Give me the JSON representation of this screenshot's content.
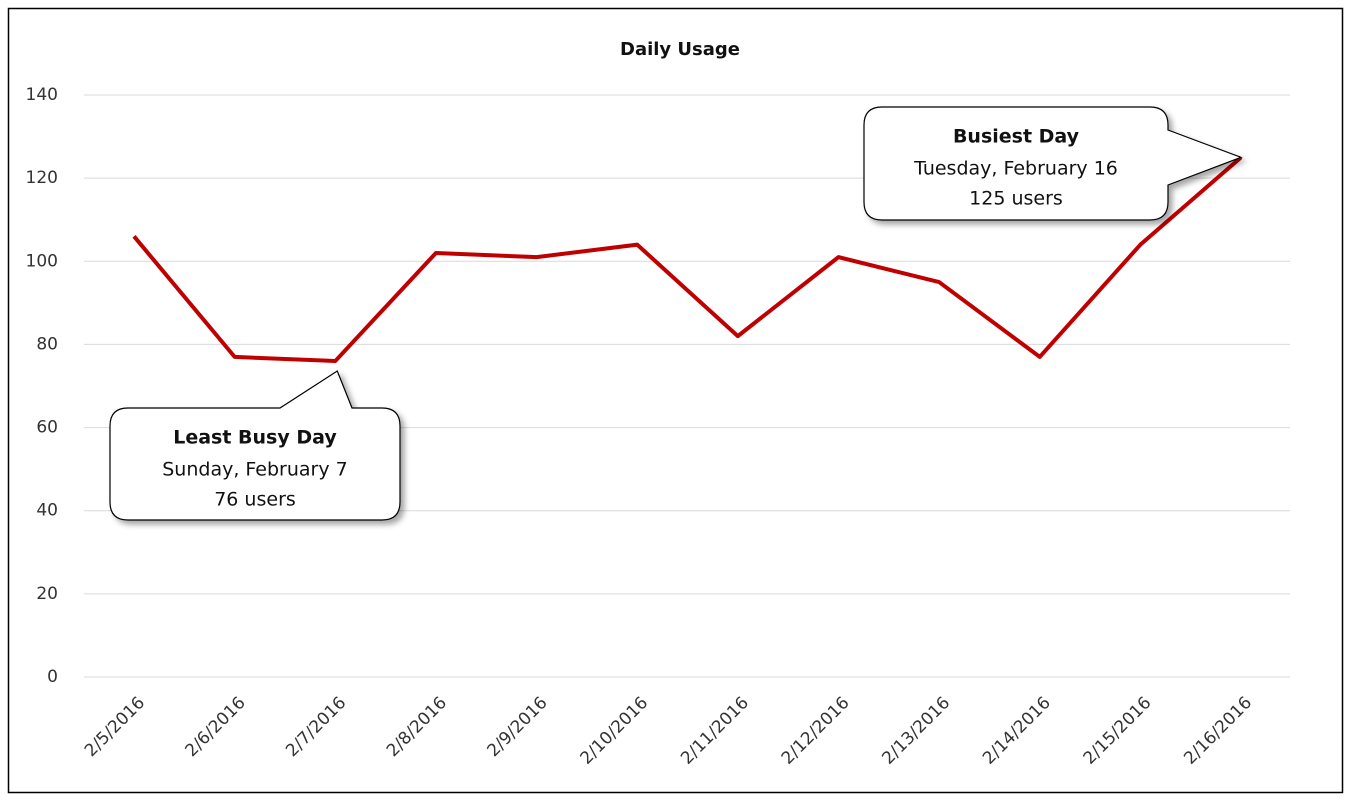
{
  "chart_data": {
    "type": "line",
    "title": "Daily Usage",
    "categories": [
      "2/5/2016",
      "2/6/2016",
      "2/7/2016",
      "2/8/2016",
      "2/9/2016",
      "2/10/2016",
      "2/11/2016",
      "2/12/2016",
      "2/13/2016",
      "2/14/2016",
      "2/15/2016",
      "2/16/2016"
    ],
    "values": [
      106,
      77,
      76,
      102,
      101,
      104,
      82,
      101,
      95,
      77,
      104,
      125
    ],
    "color": "#c00000",
    "ylim": [
      0,
      140
    ],
    "yticks": [
      0,
      20,
      40,
      60,
      80,
      100,
      120,
      140
    ],
    "grid": true,
    "annotations": [
      {
        "title": "Least Busy Day",
        "lines": [
          "Sunday, February 7",
          "76 users"
        ]
      },
      {
        "title": "Busiest Day",
        "lines": [
          "Tuesday, February 16",
          "125 users"
        ]
      }
    ]
  }
}
